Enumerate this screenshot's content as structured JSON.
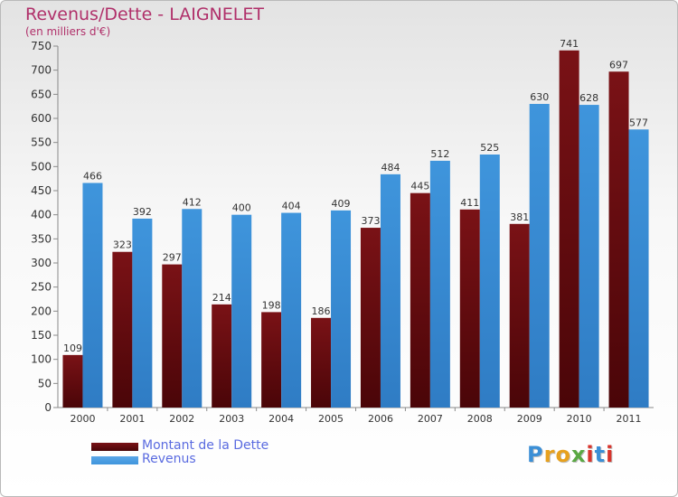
{
  "chart_data": {
    "type": "bar",
    "title": "Revenus/Dette - LAIGNELET",
    "subtitle": "(en milliers d'€)",
    "categories": [
      "2000",
      "2001",
      "2002",
      "2003",
      "2004",
      "2005",
      "2006",
      "2007",
      "2008",
      "2009",
      "2010",
      "2011"
    ],
    "series": [
      {
        "name": "Montant de la Dette",
        "color": "#7a1216",
        "values": [
          109,
          323,
          297,
          214,
          198,
          186,
          373,
          445,
          411,
          381,
          741,
          697
        ]
      },
      {
        "name": "Revenus",
        "color": "#3f95dc",
        "values": [
          466,
          392,
          412,
          400,
          404,
          409,
          484,
          512,
          525,
          630,
          628,
          577
        ]
      }
    ],
    "ylim": [
      0,
      750
    ],
    "yticks": [
      0,
      50,
      100,
      150,
      200,
      250,
      300,
      350,
      400,
      450,
      500,
      550,
      600,
      650,
      700,
      750
    ],
    "grid": false,
    "legend_placement": "bottom-left"
  },
  "branding": {
    "letters": [
      "P",
      "r",
      "o",
      "x",
      "i",
      "t",
      "i"
    ],
    "colors": [
      "#3b8fd6",
      "#e7a11e",
      "#e7a11e",
      "#5aa843",
      "#d8342c",
      "#3b8fd6",
      "#d8342c"
    ]
  }
}
